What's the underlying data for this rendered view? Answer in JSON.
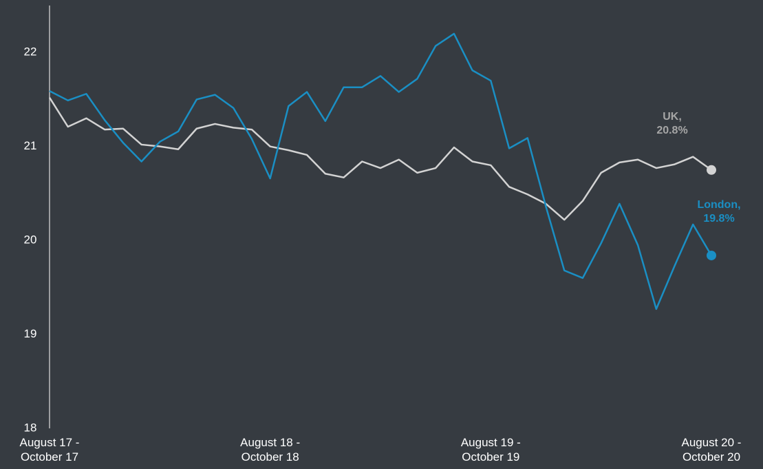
{
  "chart_data": {
    "type": "line",
    "categories": [
      "August 17 -\nOctober 17",
      null,
      null,
      null,
      null,
      null,
      null,
      null,
      null,
      null,
      null,
      null,
      "August 18 -\nOctober 18",
      null,
      null,
      null,
      null,
      null,
      null,
      null,
      null,
      null,
      null,
      null,
      "August 19 -\nOctober 19",
      null,
      null,
      null,
      null,
      null,
      null,
      null,
      null,
      null,
      null,
      null,
      "August 20 -\nOctober 20"
    ],
    "series": [
      {
        "name": "London",
        "color": "#1a8fc4",
        "values": [
          21.59,
          21.49,
          21.56,
          21.28,
          21.04,
          20.84,
          21.05,
          21.16,
          21.5,
          21.55,
          21.41,
          21.08,
          20.66,
          21.43,
          21.58,
          21.27,
          21.63,
          21.63,
          21.75,
          21.58,
          21.72,
          22.07,
          22.2,
          21.81,
          21.7,
          20.98,
          21.09,
          20.36,
          19.68,
          19.6,
          19.97,
          20.39,
          19.95,
          19.27,
          19.73,
          20.17,
          19.84
        ]
      },
      {
        "name": "UK",
        "color": "#d3d3d3",
        "values": [
          21.52,
          21.21,
          21.3,
          21.18,
          21.19,
          21.02,
          21.0,
          20.97,
          21.19,
          21.24,
          21.2,
          21.18,
          21.0,
          20.96,
          20.91,
          20.71,
          20.67,
          20.84,
          20.77,
          20.86,
          20.72,
          20.77,
          20.99,
          20.84,
          20.8,
          20.57,
          20.49,
          20.39,
          20.22,
          20.42,
          20.72,
          20.83,
          20.86,
          20.77,
          20.81,
          20.89,
          20.75
        ]
      }
    ],
    "annotations": [
      {
        "text": "UK,\n20.8%",
        "color": "#a6a6a6"
      },
      {
        "text": "London,\n19.8%",
        "color": "#1a8fc4"
      }
    ],
    "ylim": [
      18,
      22.5
    ],
    "yticks": [
      18,
      19,
      20,
      21,
      22
    ],
    "grid": false
  }
}
